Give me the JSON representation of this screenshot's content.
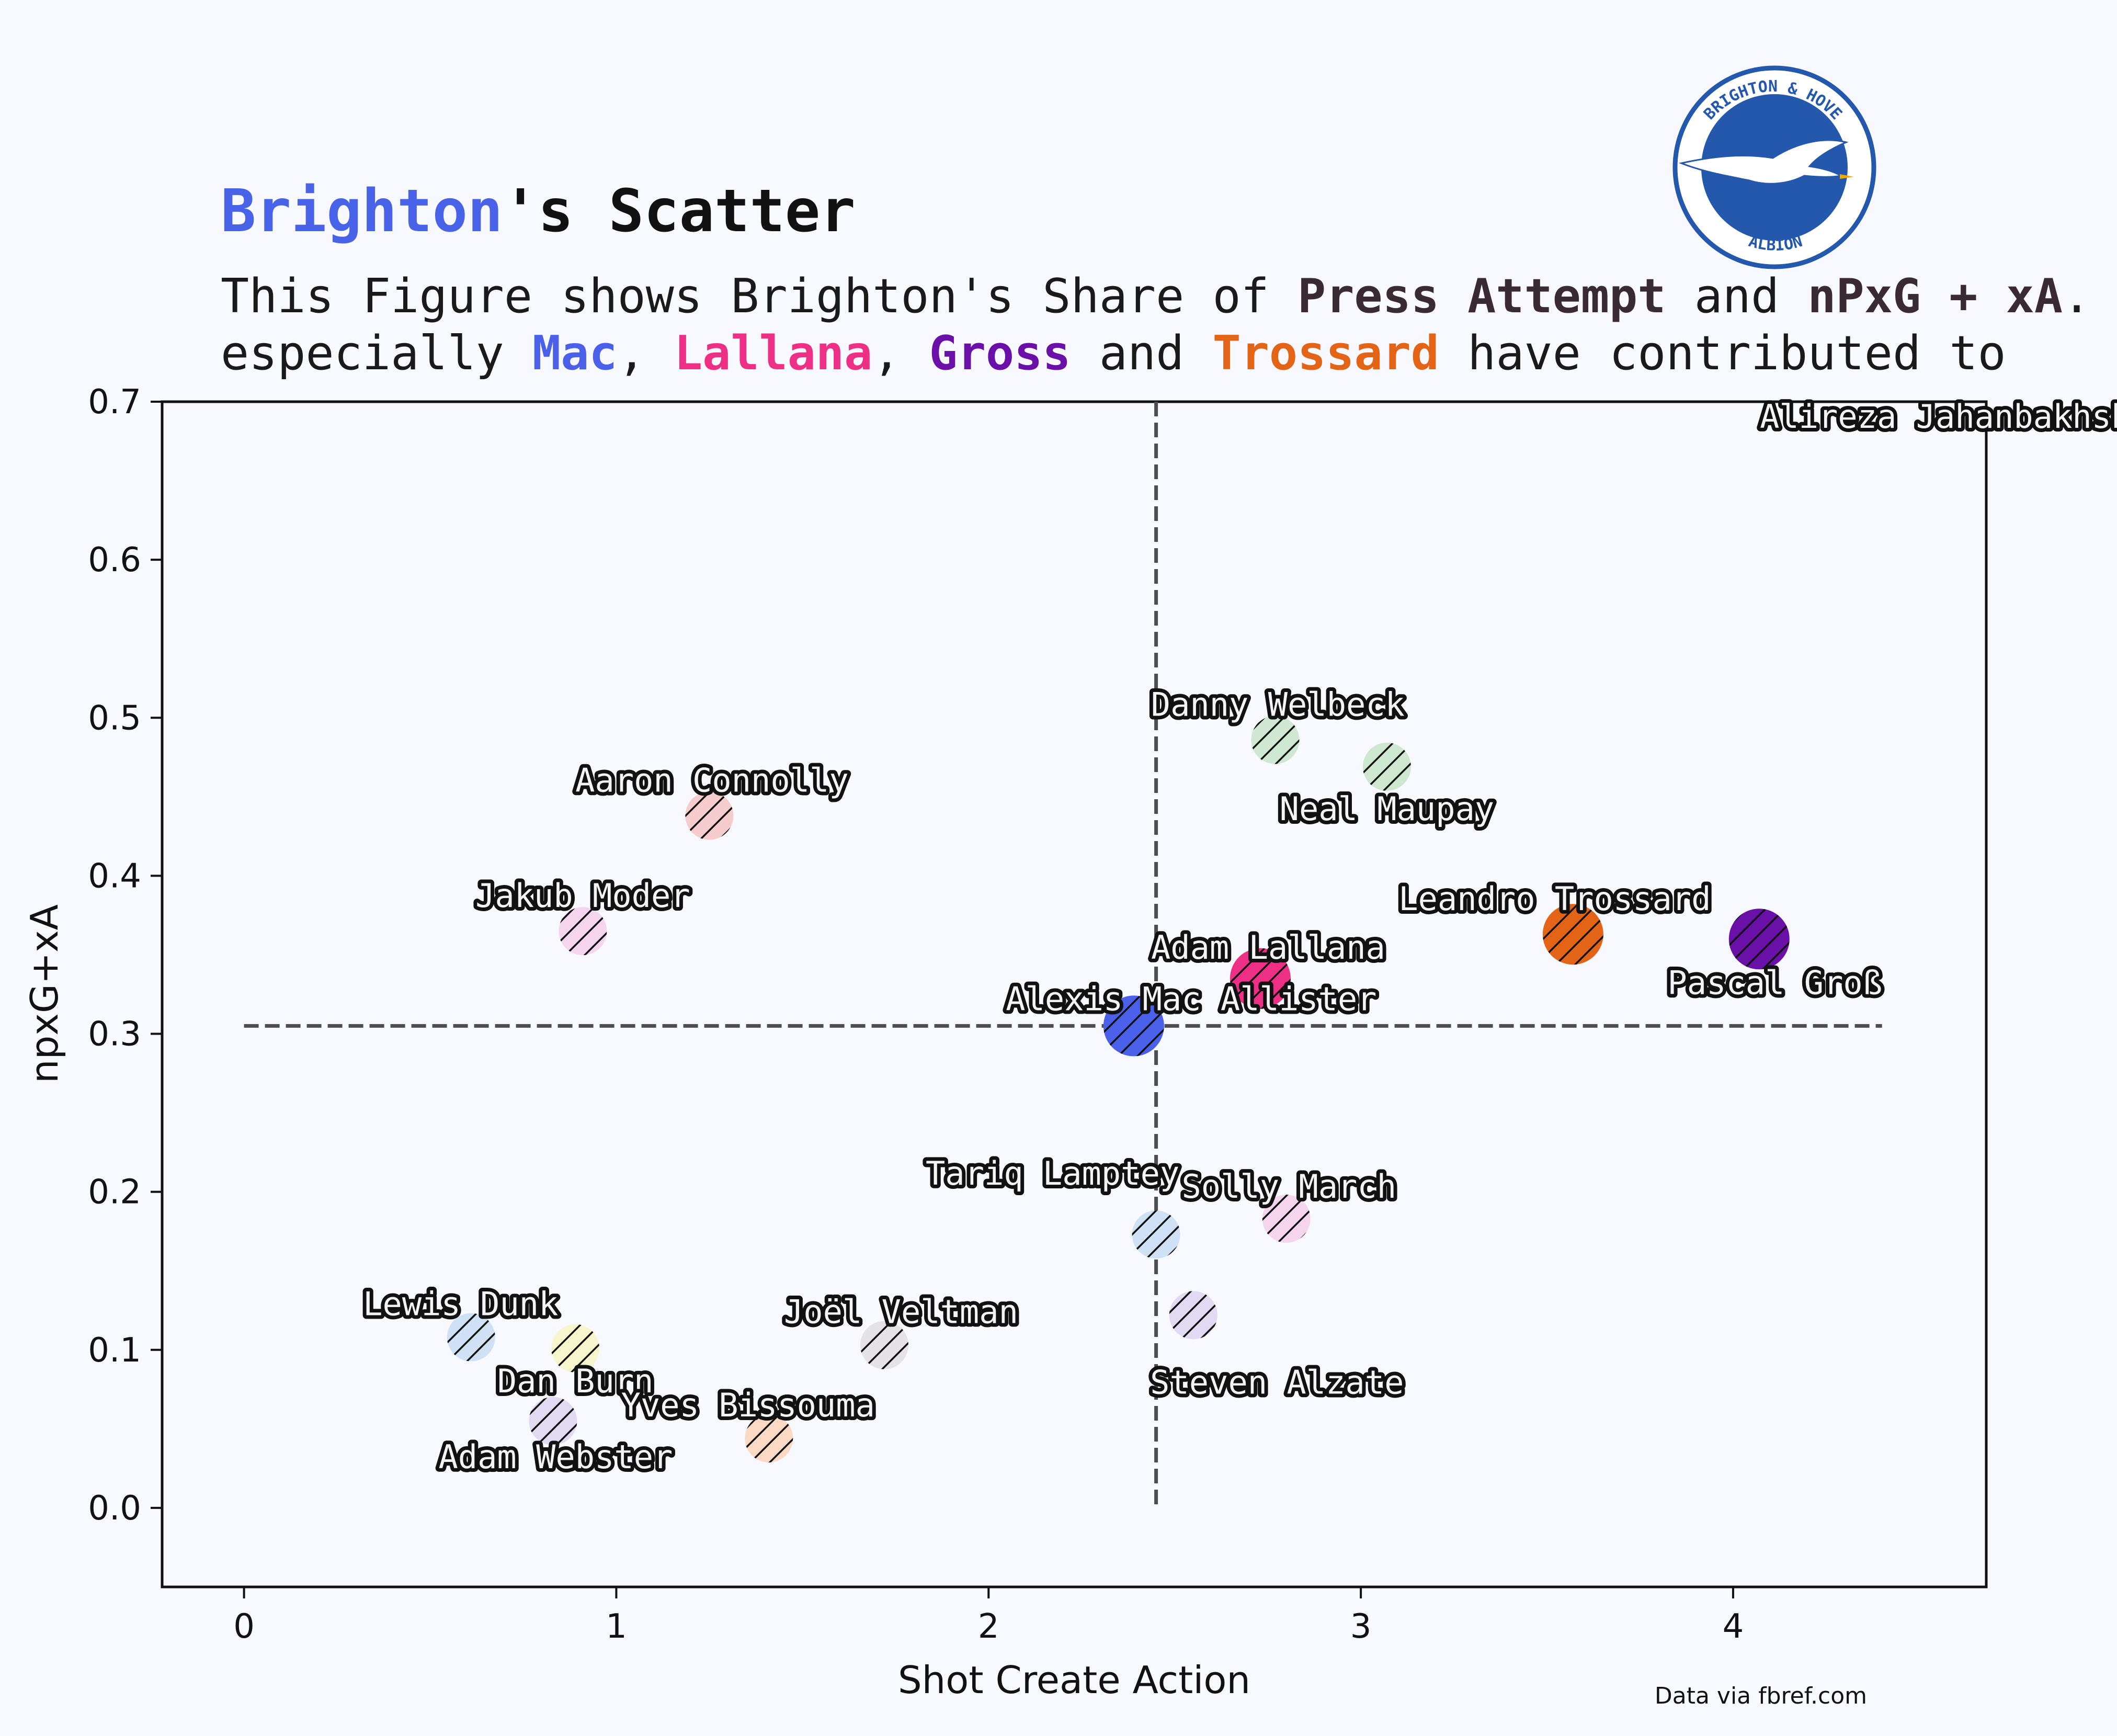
{
  "title": {
    "team": "Brighton",
    "rest": "'s Scatter",
    "team_color": "#4863e8"
  },
  "subtitle": {
    "line1": [
      {
        "text": "This Figure shows Brighton's Share of ",
        "bold": false
      },
      {
        "text": "Press Attempt",
        "bold": true,
        "color": "#3a2a33"
      },
      {
        "text": " and ",
        "bold": false
      },
      {
        "text": "nPxG + xA",
        "bold": true,
        "color": "#3a2a33"
      },
      {
        "text": ".",
        "bold": false
      }
    ],
    "line2": [
      {
        "text": "especially ",
        "bold": false
      },
      {
        "text": "Mac",
        "bold": true,
        "color": "#4a60e8"
      },
      {
        "text": ", ",
        "bold": false
      },
      {
        "text": "Lallana",
        "bold": true,
        "color": "#ee2f86"
      },
      {
        "text": ", ",
        "bold": false
      },
      {
        "text": "Gross",
        "bold": true,
        "color": "#6a10a8"
      },
      {
        "text": " and ",
        "bold": false
      },
      {
        "text": "Trossard",
        "bold": true,
        "color": "#e36416"
      },
      {
        "text": " have contributed to",
        "bold": false
      }
    ]
  },
  "logo": {
    "top_text": "BRIGHTON & HOVE",
    "bottom_text": "ALBION",
    "color": "#2458ad"
  },
  "source_note": "Data via fbref.com",
  "chart_data": {
    "type": "scatter",
    "xlabel": "Shot Create Action",
    "ylabel": "npxG+xA",
    "xlim": [
      -0.22,
      4.68
    ],
    "ylim": [
      -0.05,
      0.7
    ],
    "xticks": [
      0,
      1,
      2,
      3,
      4
    ],
    "yticks": [
      0.0,
      0.1,
      0.2,
      0.3,
      0.4,
      0.5,
      0.6,
      0.7
    ],
    "xtick_labels": [
      "0",
      "1",
      "2",
      "3",
      "4"
    ],
    "ytick_labels": [
      "0.0",
      "0.1",
      "0.2",
      "0.3",
      "0.4",
      "0.5",
      "0.6",
      "0.7"
    ],
    "reference_lines": {
      "x": 2.45,
      "y": 0.305,
      "style": "dashed",
      "color": "#4d4d4d"
    },
    "points": [
      {
        "name": "Alireza Jahanbakhsh",
        "x": 4.57,
        "y": 0.69,
        "color": null,
        "highlight": false
      },
      {
        "name": "Danny Welbeck",
        "x": 2.77,
        "y": 0.486,
        "color": "#cfe8d2",
        "highlight": false
      },
      {
        "name": "Neal Maupay",
        "x": 3.07,
        "y": 0.469,
        "color": "#cde8cf",
        "highlight": false
      },
      {
        "name": "Aaron Connolly",
        "x": 1.25,
        "y": 0.438,
        "color": "#f7cccc",
        "highlight": false
      },
      {
        "name": "Jakub Moder",
        "x": 0.91,
        "y": 0.365,
        "color": "#f6d5ee",
        "highlight": false
      },
      {
        "name": "Leandro Trossard",
        "x": 3.57,
        "y": 0.363,
        "color": "#e36416",
        "highlight": true
      },
      {
        "name": "Pascal Groß",
        "x": 4.07,
        "y": 0.36,
        "color": "#6a10a8",
        "highlight": true
      },
      {
        "name": "Adam Lallana",
        "x": 2.73,
        "y": 0.335,
        "color": "#ee2f86",
        "highlight": true
      },
      {
        "name": "Alexis Mac Allister",
        "x": 2.39,
        "y": 0.305,
        "color": "#4a60e8",
        "highlight": true
      },
      {
        "name": "Tariq Lamptey",
        "x": 2.45,
        "y": 0.173,
        "color": "#cfe1f4",
        "highlight": false
      },
      {
        "name": "Solly March",
        "x": 2.8,
        "y": 0.183,
        "color": "#f6d5ee",
        "highlight": false
      },
      {
        "name": "Steven Alzate",
        "x": 2.55,
        "y": 0.122,
        "color": "#e2daf2",
        "highlight": false
      },
      {
        "name": "Lewis Dunk",
        "x": 0.61,
        "y": 0.108,
        "color": "#cfe1f4",
        "highlight": false
      },
      {
        "name": "Dan Burn",
        "x": 0.89,
        "y": 0.101,
        "color": "#f7f6cd",
        "highlight": false
      },
      {
        "name": "Joël Veltman",
        "x": 1.72,
        "y": 0.103,
        "color": "#e5e3e6",
        "highlight": false
      },
      {
        "name": "Adam Webster",
        "x": 0.83,
        "y": 0.055,
        "color": "#e2daf2",
        "highlight": false
      },
      {
        "name": "Yves Bissouma",
        "x": 1.41,
        "y": 0.044,
        "color": "#fbd9c4",
        "highlight": false
      }
    ]
  }
}
